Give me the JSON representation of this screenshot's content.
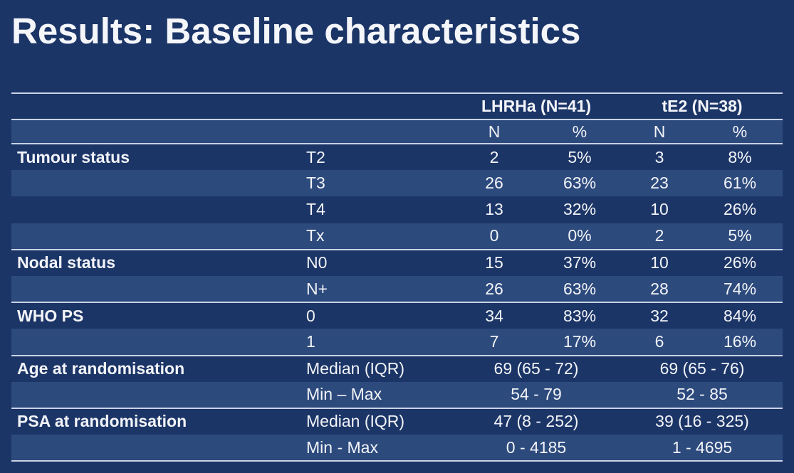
{
  "title": "Results: Baseline characteristics",
  "table": {
    "groups": [
      {
        "label": "LHRHa (N=41)"
      },
      {
        "label": "tE2 (N=38)"
      }
    ],
    "subheaders": [
      "N",
      "%",
      "N",
      "%"
    ],
    "rows": [
      {
        "label": "Tumour status",
        "sub": "T2",
        "values": [
          "2",
          "5%",
          "3",
          "8%"
        ]
      },
      {
        "label": "",
        "sub": "T3",
        "values": [
          "26",
          "63%",
          "23",
          "61%"
        ]
      },
      {
        "label": "",
        "sub": "T4",
        "values": [
          "13",
          "32%",
          "10",
          "26%"
        ]
      },
      {
        "label": "",
        "sub": "Tx",
        "values": [
          "0",
          "0%",
          "2",
          "5%"
        ]
      },
      {
        "label": "Nodal status",
        "sub": "N0",
        "values": [
          "15",
          "37%",
          "10",
          "26%"
        ]
      },
      {
        "label": "",
        "sub": "N+",
        "values": [
          "26",
          "63%",
          "28",
          "74%"
        ]
      },
      {
        "label": "WHO PS",
        "sub": "0",
        "values": [
          "34",
          "83%",
          "32",
          "84%"
        ]
      },
      {
        "label": "",
        "sub": "1",
        "values": [
          "7",
          "17%",
          "6",
          "16%"
        ]
      },
      {
        "label": "Age at randomisation",
        "sub": "Median (IQR)",
        "values": [
          "69 (65 - 72)",
          "69 (65 - 76)"
        ]
      },
      {
        "label": "",
        "sub": "Min – Max",
        "values": [
          "54 - 79",
          "52 - 85"
        ]
      },
      {
        "label": "PSA at randomisation",
        "sub": "Median (IQR)",
        "values": [
          "47 (8 - 252)",
          "39 (16 - 325)"
        ]
      },
      {
        "label": "",
        "sub": "Min - Max",
        "values": [
          "0 - 4185",
          "1 - 4695"
        ]
      }
    ]
  }
}
